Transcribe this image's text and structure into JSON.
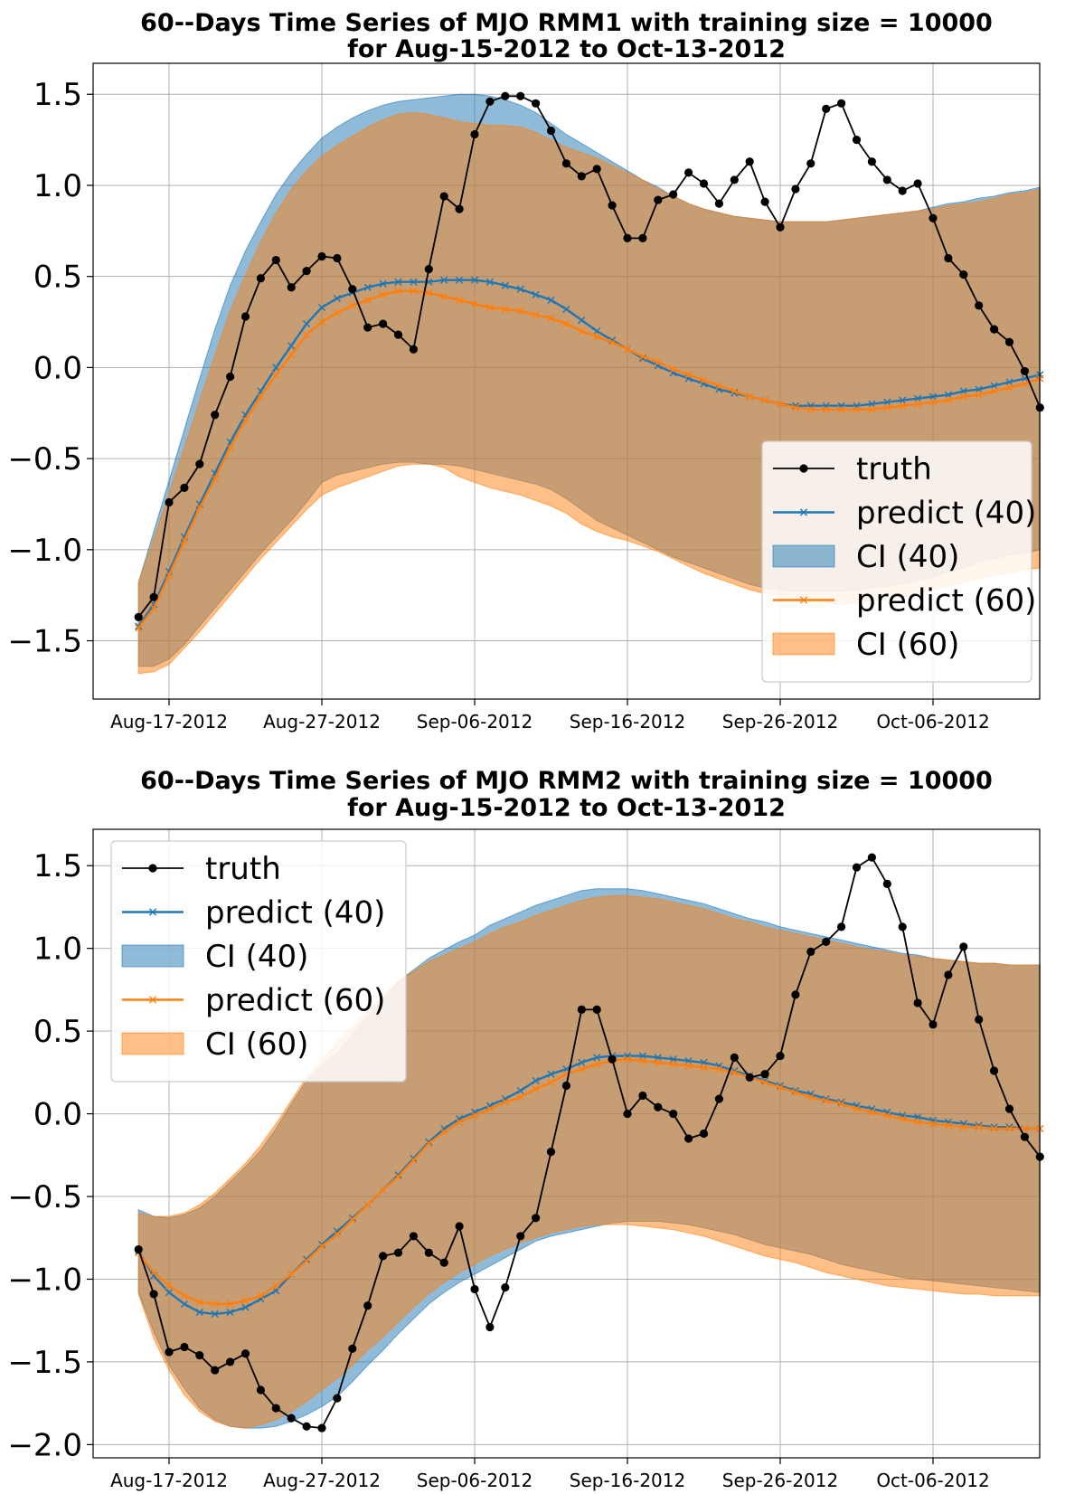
{
  "chart_data": [
    {
      "type": "line",
      "title": "60--Days Time Series of MJO RMM1 with training size = 10000",
      "subtitle": "for Aug-15-2012 to Oct-13-2012",
      "xlabel": "",
      "ylabel": "",
      "x_start": "2012-08-15",
      "x_ticks": [
        "Aug-17-2012",
        "Aug-27-2012",
        "Sep-06-2012",
        "Sep-16-2012",
        "Sep-26-2012",
        "Oct-06-2012"
      ],
      "y_ticks": [
        "1.5",
        "1.0",
        "0.5",
        "0.0",
        "−0.5",
        "−1.0",
        "−1.5"
      ],
      "ylim": [
        -1.82,
        1.67
      ],
      "grid": true,
      "legend_position": "lower-right",
      "series": [
        {
          "name": "truth",
          "kind": "line",
          "color": "#000000",
          "marker": "circle",
          "values": [
            -1.37,
            -1.26,
            -0.74,
            -0.66,
            -0.53,
            -0.26,
            -0.05,
            0.28,
            0.49,
            0.59,
            0.44,
            0.53,
            0.61,
            0.6,
            0.43,
            0.22,
            0.24,
            0.18,
            0.1,
            0.54,
            0.94,
            0.87,
            1.28,
            1.46,
            1.49,
            1.49,
            1.45,
            1.3,
            1.12,
            1.05,
            1.09,
            0.89,
            0.71,
            0.71,
            0.92,
            0.95,
            1.07,
            1.01,
            0.9,
            1.03,
            1.13,
            0.91,
            0.77,
            0.98,
            1.12,
            1.42,
            1.45,
            1.25,
            1.13,
            1.03,
            0.97,
            1.01,
            0.82,
            0.6,
            0.51,
            0.34,
            0.21,
            0.14,
            -0.02,
            -0.22
          ]
        },
        {
          "name": "predict (40)",
          "kind": "line",
          "color": "#1f77b4",
          "marker": "x",
          "values": [
            -1.42,
            -1.3,
            -1.12,
            -0.93,
            -0.75,
            -0.58,
            -0.41,
            -0.26,
            -0.13,
            0.0,
            0.12,
            0.24,
            0.33,
            0.38,
            0.41,
            0.44,
            0.46,
            0.47,
            0.47,
            0.47,
            0.48,
            0.48,
            0.48,
            0.47,
            0.45,
            0.43,
            0.4,
            0.37,
            0.32,
            0.26,
            0.2,
            0.15,
            0.1,
            0.05,
            0.01,
            -0.03,
            -0.06,
            -0.09,
            -0.12,
            -0.14,
            -0.16,
            -0.18,
            -0.2,
            -0.21,
            -0.21,
            -0.21,
            -0.21,
            -0.21,
            -0.2,
            -0.19,
            -0.18,
            -0.17,
            -0.16,
            -0.15,
            -0.13,
            -0.12,
            -0.1,
            -0.08,
            -0.06,
            -0.04
          ]
        },
        {
          "name": "CI (40)",
          "kind": "band",
          "color": "#1f77b4",
          "upper": [
            -1.18,
            -0.9,
            -0.62,
            -0.34,
            -0.06,
            0.21,
            0.45,
            0.64,
            0.8,
            0.95,
            1.07,
            1.17,
            1.26,
            1.32,
            1.37,
            1.41,
            1.44,
            1.46,
            1.47,
            1.48,
            1.49,
            1.5,
            1.5,
            1.49,
            1.47,
            1.44,
            1.4,
            1.34,
            1.28,
            1.23,
            1.18,
            1.13,
            1.08,
            1.03,
            0.99,
            0.94,
            0.9,
            0.87,
            0.85,
            0.83,
            0.82,
            0.81,
            0.8,
            0.8,
            0.8,
            0.8,
            0.81,
            0.82,
            0.83,
            0.84,
            0.85,
            0.86,
            0.88,
            0.9,
            0.91,
            0.93,
            0.94,
            0.96,
            0.97,
            0.99
          ],
          "lower": [
            -1.64,
            -1.64,
            -1.6,
            -1.52,
            -1.42,
            -1.32,
            -1.22,
            -1.12,
            -1.02,
            -0.93,
            -0.84,
            -0.74,
            -0.63,
            -0.59,
            -0.57,
            -0.55,
            -0.53,
            -0.52,
            -0.52,
            -0.53,
            -0.53,
            -0.54,
            -0.56,
            -0.58,
            -0.6,
            -0.62,
            -0.64,
            -0.67,
            -0.72,
            -0.78,
            -0.84,
            -0.88,
            -0.92,
            -0.96,
            -1.0,
            -1.04,
            -1.07,
            -1.1,
            -1.13,
            -1.16,
            -1.19,
            -1.21,
            -1.22,
            -1.23,
            -1.23,
            -1.23,
            -1.23,
            -1.22,
            -1.21,
            -1.2,
            -1.19,
            -1.17,
            -1.15,
            -1.12,
            -1.1,
            -1.07,
            -1.05,
            -1.03,
            -1.02,
            -1.0
          ]
        },
        {
          "name": "predict (60)",
          "kind": "line",
          "color": "#ff7f0e",
          "marker": "x",
          "values": [
            -1.43,
            -1.32,
            -1.14,
            -0.95,
            -0.77,
            -0.61,
            -0.44,
            -0.29,
            -0.16,
            -0.04,
            0.07,
            0.18,
            0.25,
            0.3,
            0.34,
            0.37,
            0.4,
            0.42,
            0.42,
            0.41,
            0.39,
            0.37,
            0.35,
            0.33,
            0.32,
            0.31,
            0.29,
            0.27,
            0.24,
            0.2,
            0.17,
            0.14,
            0.1,
            0.06,
            0.03,
            -0.01,
            -0.04,
            -0.07,
            -0.1,
            -0.13,
            -0.16,
            -0.18,
            -0.2,
            -0.22,
            -0.23,
            -0.23,
            -0.23,
            -0.23,
            -0.23,
            -0.22,
            -0.21,
            -0.2,
            -0.19,
            -0.18,
            -0.16,
            -0.15,
            -0.13,
            -0.11,
            -0.09,
            -0.06
          ]
        },
        {
          "name": "CI (60)",
          "kind": "band",
          "color": "#ff7f0e",
          "upper": [
            -1.18,
            -0.94,
            -0.69,
            -0.44,
            -0.18,
            0.07,
            0.31,
            0.51,
            0.69,
            0.85,
            0.98,
            1.08,
            1.16,
            1.22,
            1.27,
            1.32,
            1.36,
            1.39,
            1.4,
            1.39,
            1.37,
            1.35,
            1.34,
            1.33,
            1.33,
            1.32,
            1.29,
            1.25,
            1.21,
            1.18,
            1.15,
            1.11,
            1.07,
            1.03,
            0.98,
            0.94,
            0.9,
            0.87,
            0.85,
            0.83,
            0.82,
            0.81,
            0.8,
            0.8,
            0.8,
            0.8,
            0.81,
            0.82,
            0.83,
            0.84,
            0.85,
            0.86,
            0.87,
            0.89,
            0.9,
            0.91,
            0.93,
            0.95,
            0.96,
            0.98
          ],
          "lower": [
            -1.68,
            -1.67,
            -1.63,
            -1.54,
            -1.45,
            -1.35,
            -1.25,
            -1.15,
            -1.05,
            -0.96,
            -0.87,
            -0.78,
            -0.7,
            -0.66,
            -0.63,
            -0.6,
            -0.57,
            -0.54,
            -0.53,
            -0.53,
            -0.55,
            -0.6,
            -0.63,
            -0.66,
            -0.68,
            -0.7,
            -0.73,
            -0.76,
            -0.8,
            -0.86,
            -0.9,
            -0.93,
            -0.95,
            -0.98,
            -1.01,
            -1.05,
            -1.09,
            -1.13,
            -1.16,
            -1.19,
            -1.22,
            -1.24,
            -1.25,
            -1.27,
            -1.28,
            -1.29,
            -1.3,
            -1.29,
            -1.28,
            -1.27,
            -1.26,
            -1.24,
            -1.22,
            -1.2,
            -1.18,
            -1.16,
            -1.14,
            -1.13,
            -1.11,
            -1.1
          ]
        }
      ]
    },
    {
      "type": "line",
      "title": "60--Days Time Series of MJO RMM2 with training size = 10000",
      "subtitle": "for Aug-15-2012 to Oct-13-2012",
      "xlabel": "",
      "ylabel": "",
      "x_start": "2012-08-15",
      "x_ticks": [
        "Aug-17-2012",
        "Aug-27-2012",
        "Sep-06-2012",
        "Sep-16-2012",
        "Sep-26-2012",
        "Oct-06-2012"
      ],
      "y_ticks": [
        "1.5",
        "1.0",
        "0.5",
        "0.0",
        "−0.5",
        "−1.0",
        "−1.5",
        "−2.0"
      ],
      "ylim": [
        -2.08,
        1.72
      ],
      "grid": true,
      "legend_position": "upper-left",
      "series": [
        {
          "name": "truth",
          "kind": "line",
          "color": "#000000",
          "marker": "circle",
          "values": [
            -0.82,
            -1.09,
            -1.44,
            -1.41,
            -1.46,
            -1.55,
            -1.5,
            -1.45,
            -1.67,
            -1.78,
            -1.84,
            -1.89,
            -1.9,
            -1.72,
            -1.42,
            -1.16,
            -0.86,
            -0.84,
            -0.74,
            -0.84,
            -0.9,
            -0.68,
            -1.06,
            -1.29,
            -1.05,
            -0.74,
            -0.63,
            -0.23,
            0.17,
            0.63,
            0.63,
            0.33,
            0.0,
            0.11,
            0.04,
            0.0,
            -0.15,
            -0.12,
            0.09,
            0.34,
            0.22,
            0.24,
            0.35,
            0.72,
            0.98,
            1.04,
            1.13,
            1.49,
            1.55,
            1.39,
            1.13,
            0.67,
            0.54,
            0.84,
            1.01,
            0.57,
            0.26,
            0.03,
            -0.14,
            -0.26
          ]
        },
        {
          "name": "predict (40)",
          "kind": "line",
          "color": "#1f77b4",
          "marker": "x",
          "values": [
            -0.83,
            -0.98,
            -1.08,
            -1.15,
            -1.2,
            -1.21,
            -1.2,
            -1.17,
            -1.12,
            -1.07,
            -0.97,
            -0.88,
            -0.79,
            -0.71,
            -0.63,
            -0.55,
            -0.46,
            -0.37,
            -0.27,
            -0.17,
            -0.09,
            -0.03,
            0.01,
            0.05,
            0.09,
            0.14,
            0.2,
            0.24,
            0.27,
            0.31,
            0.34,
            0.35,
            0.35,
            0.35,
            0.34,
            0.33,
            0.32,
            0.31,
            0.29,
            0.26,
            0.23,
            0.2,
            0.17,
            0.14,
            0.12,
            0.09,
            0.07,
            0.05,
            0.03,
            0.01,
            -0.01,
            -0.02,
            -0.04,
            -0.05,
            -0.06,
            -0.07,
            -0.08,
            -0.08,
            -0.09,
            -0.09
          ]
        },
        {
          "name": "CI (40)",
          "kind": "band",
          "color": "#1f77b4",
          "upper": [
            -0.58,
            -0.62,
            -0.63,
            -0.61,
            -0.57,
            -0.5,
            -0.41,
            -0.32,
            -0.22,
            -0.09,
            0.06,
            0.2,
            0.29,
            0.37,
            0.48,
            0.59,
            0.69,
            0.8,
            0.87,
            0.94,
            0.99,
            1.04,
            1.08,
            1.14,
            1.18,
            1.22,
            1.26,
            1.29,
            1.32,
            1.35,
            1.36,
            1.36,
            1.36,
            1.35,
            1.33,
            1.31,
            1.29,
            1.27,
            1.24,
            1.21,
            1.18,
            1.16,
            1.13,
            1.11,
            1.09,
            1.07,
            1.05,
            1.03,
            1.01,
            0.99,
            0.97,
            0.96,
            0.94,
            0.93,
            0.92,
            0.91,
            0.91,
            0.9,
            0.9,
            0.9
          ],
          "lower": [
            -1.08,
            -1.32,
            -1.52,
            -1.66,
            -1.78,
            -1.85,
            -1.89,
            -1.9,
            -1.9,
            -1.89,
            -1.86,
            -1.82,
            -1.77,
            -1.71,
            -1.62,
            -1.52,
            -1.43,
            -1.33,
            -1.24,
            -1.15,
            -1.08,
            -1.02,
            -0.97,
            -0.92,
            -0.87,
            -0.82,
            -0.77,
            -0.74,
            -0.72,
            -0.7,
            -0.68,
            -0.66,
            -0.65,
            -0.65,
            -0.65,
            -0.66,
            -0.67,
            -0.69,
            -0.71,
            -0.73,
            -0.76,
            -0.79,
            -0.81,
            -0.83,
            -0.85,
            -0.88,
            -0.91,
            -0.93,
            -0.95,
            -0.97,
            -0.99,
            -1.0,
            -1.01,
            -1.02,
            -1.03,
            -1.04,
            -1.05,
            -1.06,
            -1.07,
            -1.08
          ]
        },
        {
          "name": "predict (60)",
          "kind": "line",
          "color": "#ff7f0e",
          "marker": "x",
          "values": [
            -0.84,
            -0.96,
            -1.04,
            -1.1,
            -1.14,
            -1.15,
            -1.15,
            -1.13,
            -1.1,
            -1.04,
            -0.97,
            -0.89,
            -0.8,
            -0.73,
            -0.64,
            -0.55,
            -0.46,
            -0.38,
            -0.28,
            -0.18,
            -0.11,
            -0.05,
            -0.01,
            0.03,
            0.07,
            0.1,
            0.15,
            0.19,
            0.24,
            0.27,
            0.3,
            0.32,
            0.33,
            0.32,
            0.31,
            0.3,
            0.29,
            0.28,
            0.27,
            0.25,
            0.22,
            0.19,
            0.16,
            0.13,
            0.1,
            0.08,
            0.06,
            0.03,
            0.01,
            -0.01,
            -0.03,
            -0.05,
            -0.06,
            -0.07,
            -0.08,
            -0.08,
            -0.09,
            -0.09,
            -0.09,
            -0.09
          ]
        },
        {
          "name": "CI (60)",
          "kind": "band",
          "color": "#ff7f0e",
          "upper": [
            -0.6,
            -0.62,
            -0.62,
            -0.6,
            -0.55,
            -0.48,
            -0.39,
            -0.3,
            -0.19,
            -0.06,
            0.08,
            0.22,
            0.32,
            0.43,
            0.52,
            0.62,
            0.71,
            0.8,
            0.86,
            0.92,
            0.96,
            1.0,
            1.04,
            1.09,
            1.13,
            1.16,
            1.2,
            1.23,
            1.26,
            1.29,
            1.31,
            1.32,
            1.32,
            1.31,
            1.3,
            1.28,
            1.26,
            1.24,
            1.21,
            1.18,
            1.16,
            1.13,
            1.11,
            1.09,
            1.07,
            1.05,
            1.03,
            1.01,
            0.99,
            0.98,
            0.96,
            0.95,
            0.94,
            0.93,
            0.92,
            0.91,
            0.91,
            0.9,
            0.9,
            0.9
          ],
          "lower": [
            -1.09,
            -1.36,
            -1.55,
            -1.7,
            -1.8,
            -1.86,
            -1.89,
            -1.9,
            -1.88,
            -1.85,
            -1.8,
            -1.74,
            -1.67,
            -1.6,
            -1.52,
            -1.43,
            -1.35,
            -1.26,
            -1.17,
            -1.09,
            -1.02,
            -0.96,
            -0.91,
            -0.86,
            -0.82,
            -0.78,
            -0.75,
            -0.72,
            -0.7,
            -0.68,
            -0.67,
            -0.67,
            -0.67,
            -0.68,
            -0.69,
            -0.7,
            -0.72,
            -0.74,
            -0.77,
            -0.8,
            -0.83,
            -0.86,
            -0.88,
            -0.9,
            -0.93,
            -0.96,
            -0.98,
            -1.0,
            -1.02,
            -1.04,
            -1.05,
            -1.06,
            -1.07,
            -1.08,
            -1.09,
            -1.09,
            -1.1,
            -1.1,
            -1.1,
            -1.1
          ]
        }
      ]
    }
  ]
}
